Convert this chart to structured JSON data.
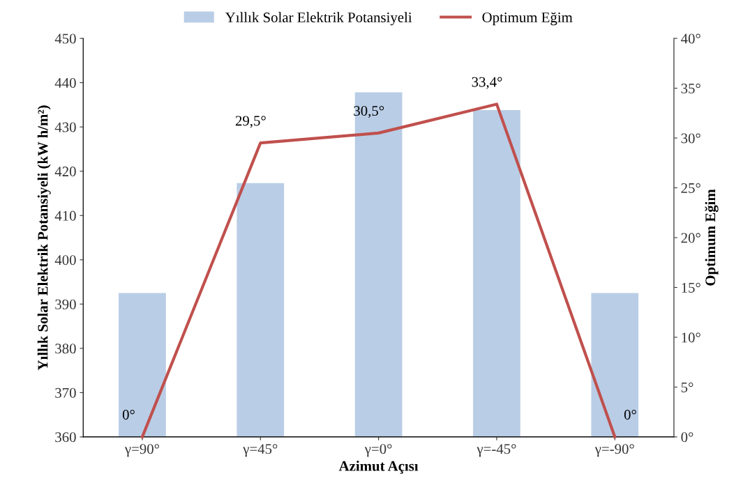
{
  "chart_data": {
    "type": "bar",
    "xlabel": "Azimut Açısı",
    "ylabel": "Yıllık Solar Elektrik Potansiyeli (kW h/m²)",
    "y2label": "Optimum Eğim",
    "categories": [
      "γ=90°",
      "γ=45°",
      "γ=0°",
      "γ=-45°",
      "γ=-90°"
    ],
    "series": [
      {
        "name": "Yıllık Solar Elektrik Potansiyeli",
        "color": "#b9cde6",
        "values": [
          392.5,
          417.3,
          437.8,
          433.8,
          392.5
        ]
      },
      {
        "name": "Optimum Eğim",
        "type": "line",
        "axis": "y2",
        "color": "#c0504d",
        "values": [
          0,
          29.5,
          30.5,
          33.4,
          0
        ],
        "value_labels": [
          "0°",
          "29,5°",
          "30,5°",
          "33,4°",
          "0°"
        ]
      }
    ],
    "ylim": [
      360,
      450
    ],
    "yticks": [
      360,
      370,
      380,
      390,
      400,
      410,
      420,
      430,
      440,
      450
    ],
    "y2lim": [
      0,
      40
    ],
    "y2ticks": [
      {
        "value": 0,
        "label": "0°"
      },
      {
        "value": 5,
        "label": "5°"
      },
      {
        "value": 10,
        "label": "10°"
      },
      {
        "value": 15,
        "label": "15°"
      },
      {
        "value": 20,
        "label": "20°"
      },
      {
        "value": 25,
        "label": "25°"
      },
      {
        "value": 30,
        "label": "30°"
      },
      {
        "value": 35,
        "label": "35°"
      },
      {
        "value": 40,
        "label": "40°"
      }
    ],
    "legend": "top",
    "grid": false,
    "marker": "none",
    "line_style": "solid"
  }
}
